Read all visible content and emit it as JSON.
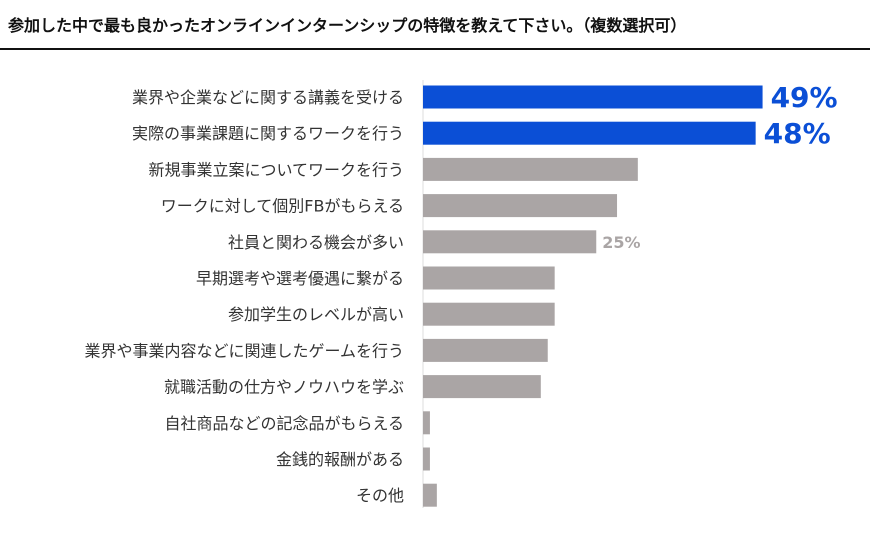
{
  "title": "参加した中で最も良かったオンラインインターンシップの特徴を教えて下さい。（複数選択可）",
  "chart_data": {
    "type": "bar",
    "orientation": "horizontal",
    "title": "参加した中で最も良かったオンラインインターンシップの特徴を教えて下さい。（複数選択可）",
    "categories": [
      "業界や企業などに関する講義を受ける",
      "実際の事業課題に関するワークを行う",
      "新規事業立案についてワークを行う",
      "ワークに対して個別FBがもらえる",
      "社員と関わる機会が多い",
      "早期選考や選考優遇に繋がる",
      "参加学生のレベルが高い",
      "業界や事業内容などに関連したゲームを行う",
      "就職活動の仕方やノウハウを学ぶ",
      "自社商品などの記念品がもらえる",
      "金銭的報酬がある",
      "その他"
    ],
    "values": [
      49,
      48,
      31,
      28,
      25,
      19,
      19,
      18,
      17,
      1,
      1,
      2
    ],
    "unit": "%",
    "xlim": [
      0,
      50
    ],
    "grid": false,
    "labels": [
      "49%",
      "48%",
      "",
      "",
      "25%",
      "",
      "",
      "",
      "",
      "",
      "",
      ""
    ],
    "colors": {
      "highlight": "#0b4fd6",
      "default": "#aaa5a5",
      "label_default": "#aaa5a5"
    },
    "highlighted": [
      0,
      1
    ]
  }
}
